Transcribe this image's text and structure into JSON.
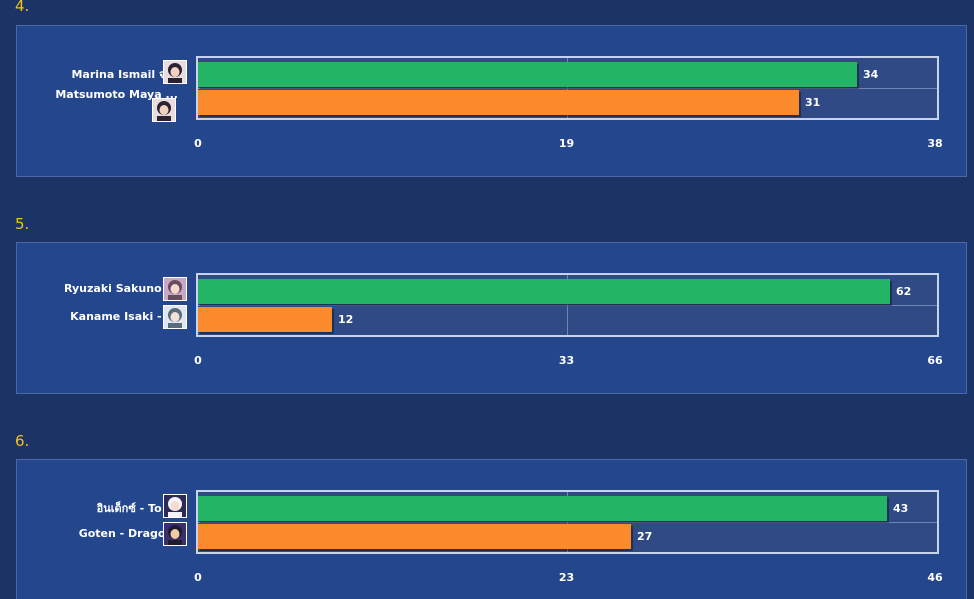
{
  "colors": {
    "background": "#1c3366",
    "panel": "#24468d",
    "plot": "#2f4a85",
    "series_a": "#23b565",
    "series_b": "#fb8a2c",
    "section_number": "#f2c418"
  },
  "chart_data": [
    {
      "type": "bar",
      "orientation": "horizontal",
      "section_label": "4.",
      "categories": [
        "Marina Ismail จ...",
        "Matsumoto Maya ..."
      ],
      "values": [
        34,
        31
      ],
      "xlim": [
        0,
        38
      ],
      "ticks": [
        "0",
        "19",
        "38"
      ],
      "grid": true,
      "avatars": [
        "dark-hair-girl-avatar",
        "dark-hair-girl-avatar"
      ]
    },
    {
      "type": "bar",
      "orientation": "horizontal",
      "section_label": "5.",
      "categories": [
        "Ryuzaki Sakuno ...",
        "Kaname Isaki - ..."
      ],
      "values": [
        62,
        12
      ],
      "xlim": [
        0,
        66
      ],
      "ticks": [
        "0",
        "33",
        "66"
      ],
      "grid": true,
      "avatars": [
        "long-hair-girl-avatar",
        "short-hair-girl-avatar"
      ]
    },
    {
      "type": "bar",
      "orientation": "horizontal",
      "section_label": "6.",
      "categories": [
        "อินเด็กซ์ - To ...",
        "Goten  -  Drago..."
      ],
      "values": [
        43,
        27
      ],
      "xlim": [
        0,
        46
      ],
      "ticks": [
        "0",
        "23",
        "46"
      ],
      "grid": true,
      "avatars": [
        "white-hood-girl-avatar",
        "spiky-hair-boy-avatar"
      ]
    }
  ]
}
